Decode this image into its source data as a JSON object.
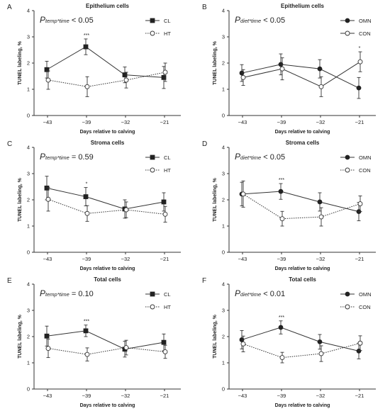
{
  "chart_data": [
    {
      "panel": "A",
      "type": "line",
      "title": "Epithelium cells",
      "stat": {
        "main": "P",
        "sub": "temp*time",
        "rest": " < 0.05"
      },
      "xlabel": "Days relative to calving",
      "ylabel": "TUNEL labeling, %",
      "categories": [
        "−43",
        "−39",
        "−32",
        "−21"
      ],
      "ylim": [
        0,
        4
      ],
      "yticks": [
        "0",
        "1",
        "2",
        "3",
        "4"
      ],
      "series": [
        {
          "name": "CL",
          "values": [
            1.75,
            2.62,
            1.55,
            1.45
          ],
          "errors": [
            0.32,
            0.3,
            0.3,
            0.42
          ],
          "style": "solid",
          "marker": "square-filled"
        },
        {
          "name": "HT",
          "values": [
            1.35,
            1.1,
            1.35,
            1.65
          ],
          "errors": [
            0.35,
            0.38,
            0.3,
            0.35
          ],
          "style": "dotted",
          "marker": "circle-open"
        }
      ],
      "significance": [
        {
          "category_index": 1,
          "label": "***"
        }
      ]
    },
    {
      "panel": "B",
      "type": "line",
      "title": "Epithelium cells",
      "stat": {
        "main": "P",
        "sub": "diet*time",
        "rest": " < 0.05"
      },
      "xlabel": "Days relative to calving",
      "ylabel": "TUNEL labeling, %",
      "categories": [
        "−43",
        "−39",
        "−32",
        "−21"
      ],
      "ylim": [
        0,
        4
      ],
      "yticks": [
        "0",
        "1",
        "2",
        "3",
        "4"
      ],
      "series": [
        {
          "name": "OMN",
          "values": [
            1.62,
            1.95,
            1.78,
            1.05
          ],
          "errors": [
            0.32,
            0.4,
            0.35,
            0.4
          ],
          "style": "solid",
          "marker": "circle-filled"
        },
        {
          "name": "CON",
          "values": [
            1.45,
            1.78,
            1.1,
            2.05
          ],
          "errors": [
            0.3,
            0.42,
            0.38,
            0.38
          ],
          "style": "solid",
          "marker": "circle-open"
        }
      ],
      "significance": [
        {
          "category_index": 3,
          "label": "*"
        }
      ]
    },
    {
      "panel": "C",
      "type": "line",
      "title": "Stroma cells",
      "stat": {
        "main": "P",
        "sub": "temp*time",
        "rest": " = 0.59"
      },
      "xlabel": "Days relative to calving",
      "ylabel": "TUNEL labeling, %",
      "categories": [
        "−43",
        "−39",
        "−32",
        "−21"
      ],
      "ylim": [
        0,
        4
      ],
      "yticks": [
        "0",
        "1",
        "2",
        "3",
        "4"
      ],
      "series": [
        {
          "name": "CL",
          "values": [
            2.45,
            2.12,
            1.65,
            1.92
          ],
          "errors": [
            0.45,
            0.35,
            0.35,
            0.35
          ],
          "style": "solid",
          "marker": "square-filled"
        },
        {
          "name": "HT",
          "values": [
            2.02,
            1.48,
            1.62,
            1.45
          ],
          "errors": [
            0.45,
            0.3,
            0.3,
            0.3
          ],
          "style": "dotted",
          "marker": "circle-open"
        }
      ],
      "significance": [
        {
          "category_index": 1,
          "label": "*"
        }
      ]
    },
    {
      "panel": "D",
      "type": "line",
      "title": "Stroma cells",
      "stat": {
        "main": "P",
        "sub": "diet*time",
        "rest": " < 0.05"
      },
      "xlabel": "Days relative to calving",
      "ylabel": "TUNEL labeling, %",
      "categories": [
        "−43",
        "−39",
        "−32",
        "−21"
      ],
      "ylim": [
        0,
        4
      ],
      "yticks": [
        "0",
        "1",
        "2",
        "3",
        "4"
      ],
      "series": [
        {
          "name": "OMN",
          "values": [
            2.22,
            2.32,
            1.92,
            1.55
          ],
          "errors": [
            0.45,
            0.3,
            0.35,
            0.35
          ],
          "style": "solid",
          "marker": "circle-filled"
        },
        {
          "name": "CON",
          "values": [
            2.22,
            1.28,
            1.35,
            1.85
          ],
          "errors": [
            0.5,
            0.28,
            0.35,
            0.3
          ],
          "style": "dotted",
          "marker": "circle-open"
        }
      ],
      "significance": [
        {
          "category_index": 1,
          "label": "***"
        }
      ]
    },
    {
      "panel": "E",
      "type": "line",
      "title": "Total cells",
      "stat": {
        "main": "P",
        "sub": "temp*time",
        "rest": " = 0.10"
      },
      "xlabel": "Days relative to calving",
      "ylabel": "TUNEL labeling, %",
      "categories": [
        "−43",
        "−39",
        "−32",
        "−21"
      ],
      "ylim": [
        0,
        4
      ],
      "yticks": [
        "0",
        "1",
        "2",
        "3",
        "4"
      ],
      "series": [
        {
          "name": "CL",
          "values": [
            2.02,
            2.22,
            1.52,
            1.78
          ],
          "errors": [
            0.38,
            0.22,
            0.3,
            0.32
          ],
          "style": "solid",
          "marker": "square-filled"
        },
        {
          "name": "HT",
          "values": [
            1.55,
            1.32,
            1.58,
            1.42
          ],
          "errors": [
            0.35,
            0.25,
            0.28,
            0.25
          ],
          "style": "dotted",
          "marker": "circle-open"
        }
      ],
      "significance": [
        {
          "category_index": 1,
          "label": "***"
        }
      ]
    },
    {
      "panel": "F",
      "type": "line",
      "title": "Total cells",
      "stat": {
        "main": "P",
        "sub": "diet*time",
        "rest": " < 0.01"
      },
      "xlabel": "Days relative to calving",
      "ylabel": "TUNEL labeling, %",
      "categories": [
        "−43",
        "−39",
        "−32",
        "−21"
      ],
      "ylim": [
        0,
        4
      ],
      "yticks": [
        "0",
        "1",
        "2",
        "3",
        "4"
      ],
      "series": [
        {
          "name": "OMN",
          "values": [
            1.88,
            2.35,
            1.8,
            1.45
          ],
          "errors": [
            0.35,
            0.25,
            0.28,
            0.3
          ],
          "style": "solid",
          "marker": "circle-filled"
        },
        {
          "name": "CON",
          "values": [
            1.72,
            1.2,
            1.35,
            1.75
          ],
          "errors": [
            0.3,
            0.2,
            0.3,
            0.28
          ],
          "style": "dotted",
          "marker": "circle-open"
        }
      ],
      "significance": [
        {
          "category_index": 1,
          "label": "***"
        }
      ]
    }
  ]
}
